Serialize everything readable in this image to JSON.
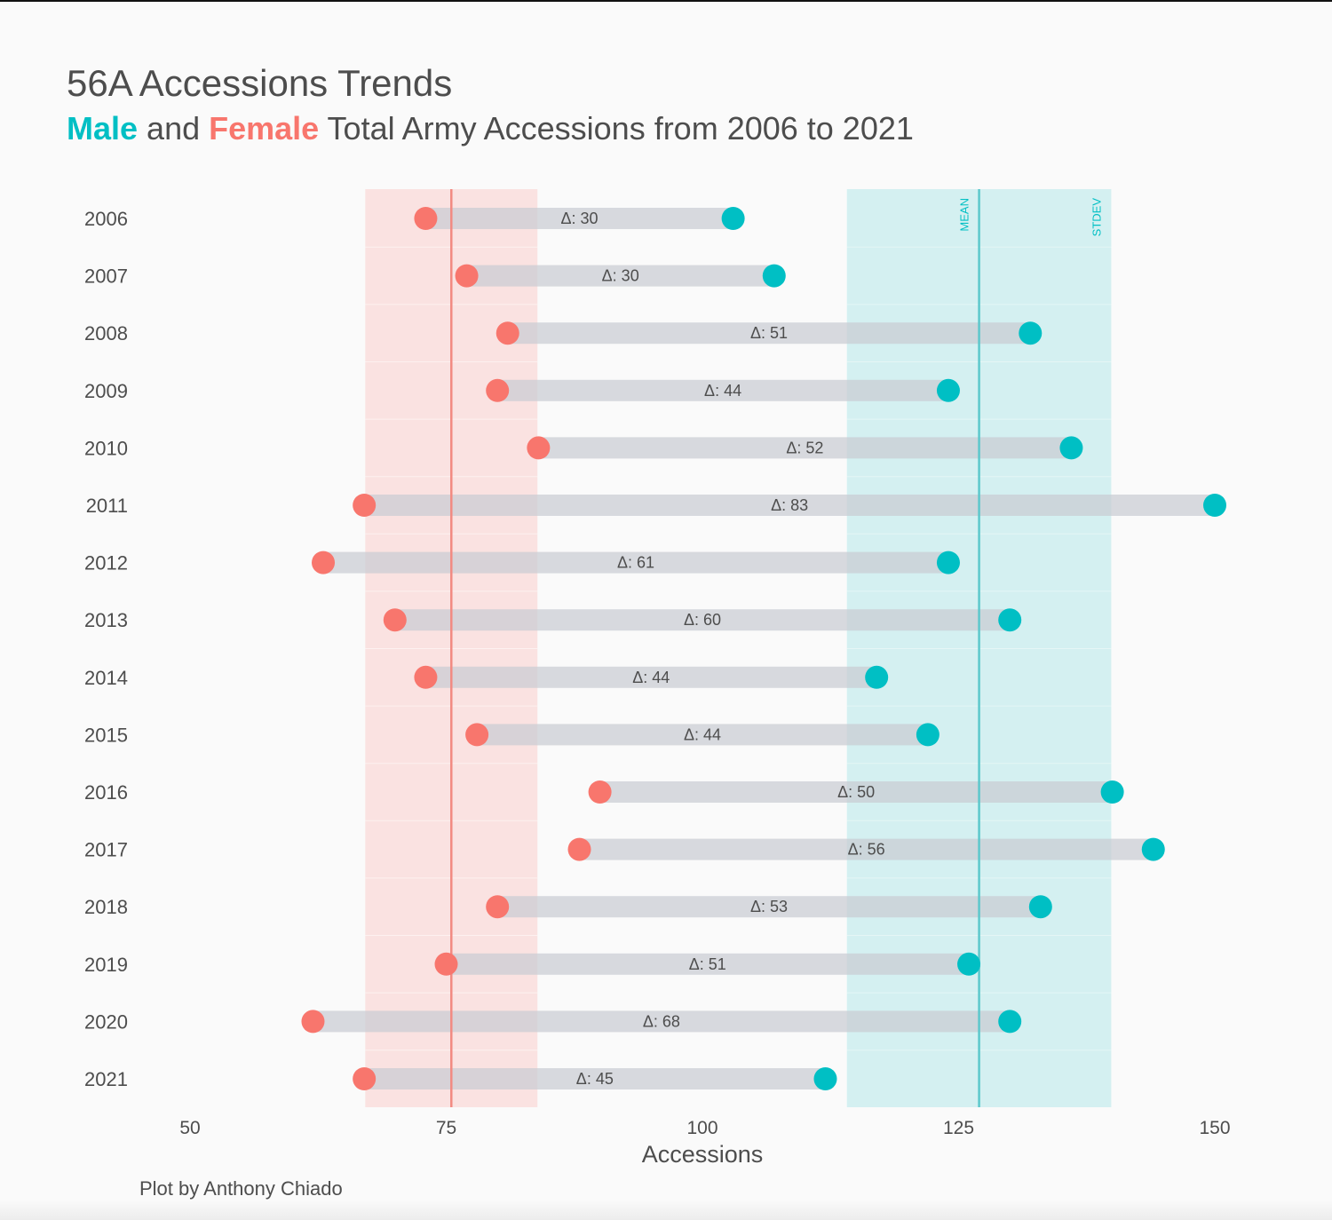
{
  "title": "56A Accessions Trends",
  "subtitle": {
    "male": "Male",
    "and": " and ",
    "female": "Female",
    "rest": " Total Army Accessions from 2006 to 2021"
  },
  "caption": "Plot by Anthony Chiado",
  "colors": {
    "male": "#00bfc4",
    "female": "#f8766d",
    "bar": "#d7d9de"
  },
  "chart_data": {
    "type": "dumbbell",
    "categories": [
      "2006",
      "2007",
      "2008",
      "2009",
      "2010",
      "2011",
      "2012",
      "2013",
      "2014",
      "2015",
      "2016",
      "2017",
      "2018",
      "2019",
      "2020",
      "2021"
    ],
    "series": [
      {
        "name": "Female",
        "values": [
          73,
          77,
          81,
          80,
          84,
          67,
          63,
          70,
          73,
          78,
          90,
          88,
          80,
          75,
          62,
          67
        ]
      },
      {
        "name": "Male",
        "values": [
          103,
          107,
          132,
          124,
          136,
          150,
          124,
          130,
          117,
          122,
          140,
          144,
          133,
          126,
          130,
          112
        ]
      }
    ],
    "deltas": [
      "Δ:  30",
      "Δ:  30",
      "Δ:  51",
      "Δ:  44",
      "Δ:  52",
      "Δ:  83",
      "Δ:  61",
      "Δ:  60",
      "Δ:  44",
      "Δ:  44",
      "Δ:  50",
      "Δ:  56",
      "Δ:  53",
      "Δ:  51",
      "Δ:  68",
      "Δ:  45"
    ],
    "xlabel": "Accessions",
    "ylabel": "",
    "xlim": [
      50,
      150
    ],
    "xticks": [
      "50",
      "75",
      "100",
      "125",
      "150"
    ],
    "female_band": {
      "mean": 75.5,
      "low": 67.1,
      "high": 83.9
    },
    "male_band": {
      "mean": 127,
      "low": 114.1,
      "high": 139.9,
      "mean_label": "MEAN",
      "stdev_label": "STDEV"
    },
    "grid": false,
    "legend": "none"
  }
}
